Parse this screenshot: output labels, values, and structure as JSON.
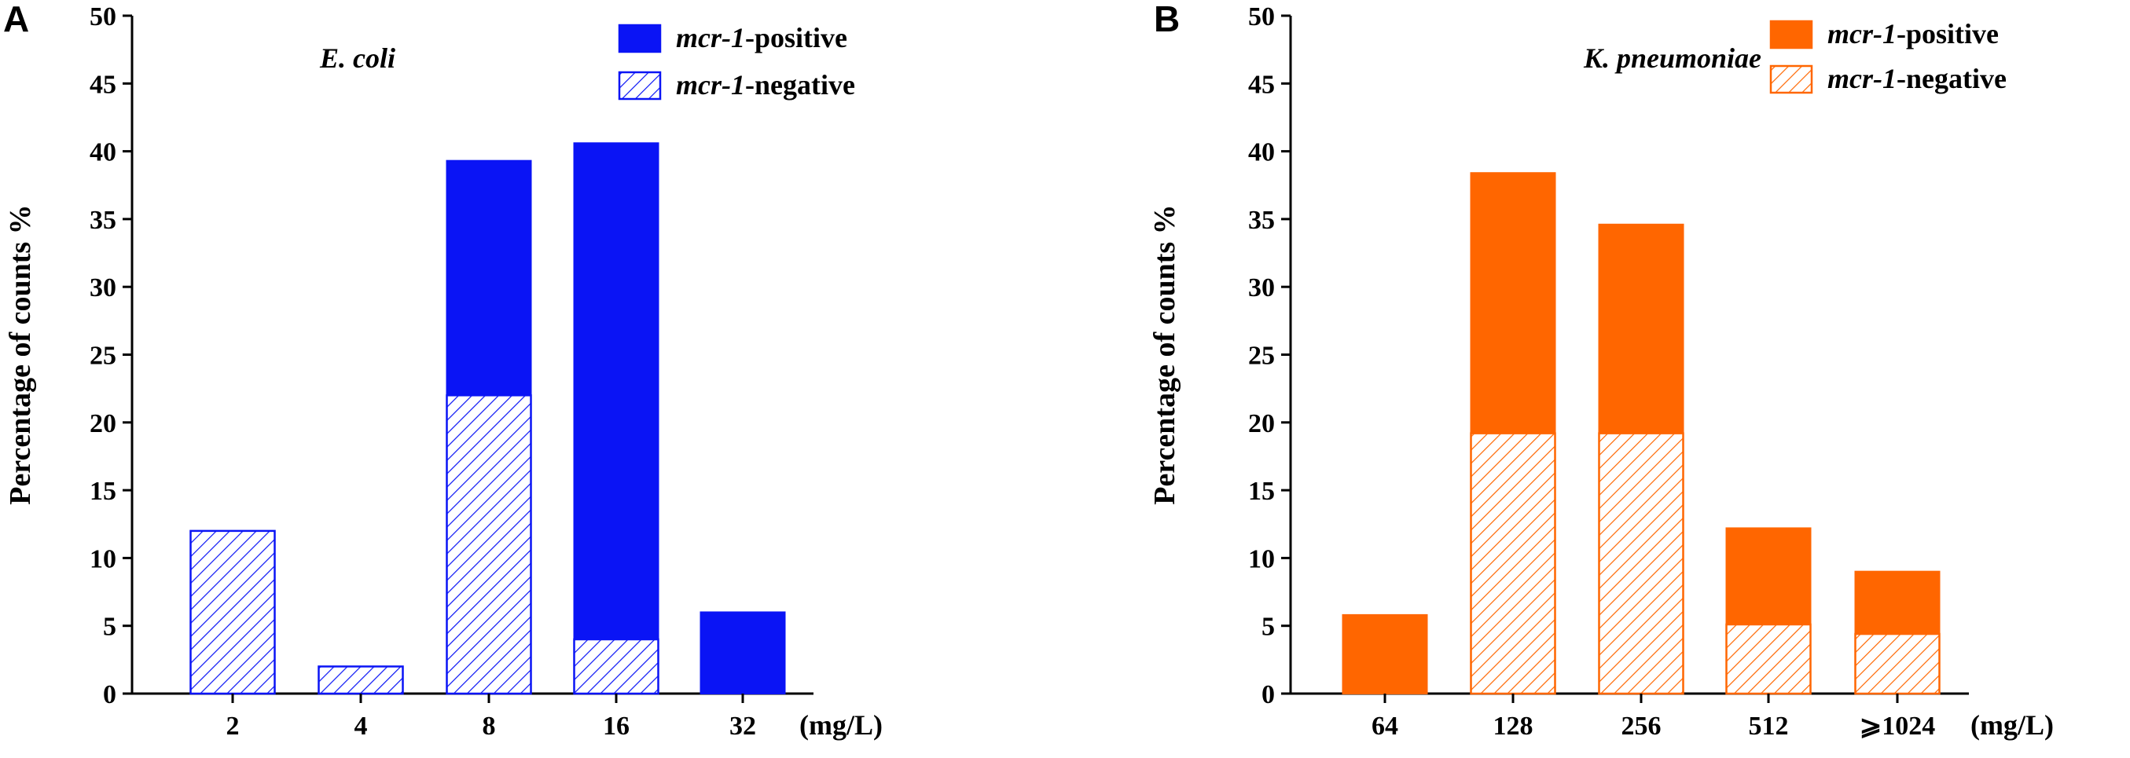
{
  "chart_data": [
    {
      "type": "bar",
      "stacked": true,
      "panel": "A",
      "species": "E. coli",
      "categories": [
        "2",
        "4",
        "8",
        "16",
        "32"
      ],
      "unit": "(mg/L)",
      "ylabel": "Percentage of counts %",
      "ylim": [
        0,
        50
      ],
      "yticks": [
        0,
        5,
        10,
        15,
        20,
        25,
        30,
        35,
        40,
        45,
        50
      ],
      "legend_position": "top-right",
      "color": "#0a14f5",
      "series": [
        {
          "name": "mcr-1-negative",
          "italic": "mcr-1",
          "suffix": "-negative",
          "pattern": "hatch",
          "values": [
            12,
            2,
            22,
            4,
            0
          ]
        },
        {
          "name": "mcr-1-positive",
          "italic": "mcr-1",
          "suffix": "-positive",
          "pattern": "solid",
          "values": [
            0,
            0,
            17.3,
            36.6,
            6
          ]
        }
      ]
    },
    {
      "type": "bar",
      "stacked": true,
      "panel": "B",
      "species": "K. pneumoniae",
      "categories": [
        "64",
        "128",
        "256",
        "512",
        "⩾1024"
      ],
      "unit": "(mg/L)",
      "ylabel": "Percentage of counts %",
      "ylim": [
        0,
        50
      ],
      "yticks": [
        0,
        5,
        10,
        15,
        20,
        25,
        30,
        35,
        40,
        45,
        50
      ],
      "legend_position": "top-right",
      "color": "#ff6600",
      "series": [
        {
          "name": "mcr-1-negative",
          "italic": "mcr-1",
          "suffix": "-negative",
          "pattern": "hatch",
          "values": [
            0,
            19.2,
            19.2,
            5.1,
            4.4
          ]
        },
        {
          "name": "mcr-1-positive",
          "italic": "mcr-1",
          "suffix": "-positive",
          "pattern": "solid",
          "values": [
            5.8,
            19.2,
            15.4,
            7.1,
            4.6
          ]
        }
      ]
    }
  ]
}
